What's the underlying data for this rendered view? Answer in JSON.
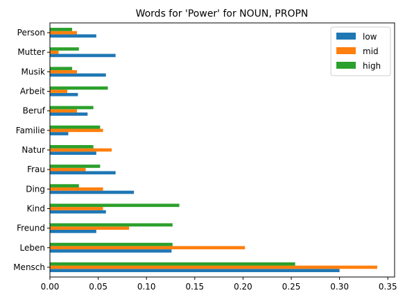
{
  "chart_data": {
    "type": "bar",
    "orientation": "horizontal",
    "title": "Words for 'Power' for NOUN, PROPN",
    "xlabel": "",
    "ylabel": "",
    "xlim": [
      0,
      0.357
    ],
    "xticks": [
      "0.00",
      "0.05",
      "0.10",
      "0.15",
      "0.20",
      "0.25",
      "0.30",
      "0.35"
    ],
    "xtick_values": [
      0,
      0.05,
      0.1,
      0.15,
      0.2,
      0.25,
      0.3,
      0.35
    ],
    "grid": false,
    "legend_position": "top-right",
    "categories": [
      "Mensch",
      "Leben",
      "Freund",
      "Kind",
      "Ding",
      "Frau",
      "Natur",
      "Familie",
      "Beruf",
      "Arbeit",
      "Musik",
      "Mutter",
      "Person"
    ],
    "series": [
      {
        "name": "low",
        "color": "#1f77b4",
        "values": [
          0.3,
          0.126,
          0.048,
          0.058,
          0.087,
          0.068,
          0.048,
          0.019,
          0.039,
          0.029,
          0.058,
          0.068,
          0.048
        ]
      },
      {
        "name": "mid",
        "color": "#ff7f0e",
        "values": [
          0.339,
          0.202,
          0.082,
          0.055,
          0.055,
          0.037,
          0.064,
          0.055,
          0.028,
          0.018,
          0.028,
          0.009,
          0.028
        ]
      },
      {
        "name": "high",
        "color": "#2ca02c",
        "values": [
          0.254,
          0.127,
          0.127,
          0.134,
          0.03,
          0.052,
          0.045,
          0.052,
          0.045,
          0.06,
          0.023,
          0.03,
          0.023
        ]
      }
    ]
  }
}
